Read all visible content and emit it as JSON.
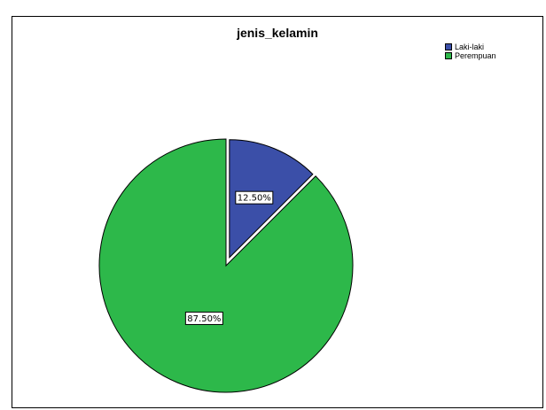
{
  "chart_data": {
    "type": "pie",
    "title": "jenis_kelamin",
    "slices": [
      {
        "name": "Laki-laki",
        "value": 12.5,
        "label": "12.50%",
        "color": "#3b4fa8",
        "exploded": true
      },
      {
        "name": "Perempuan",
        "value": 87.5,
        "label": "87.50%",
        "color": "#2db84a",
        "exploded": false
      }
    ],
    "legend_position": "top-right"
  }
}
